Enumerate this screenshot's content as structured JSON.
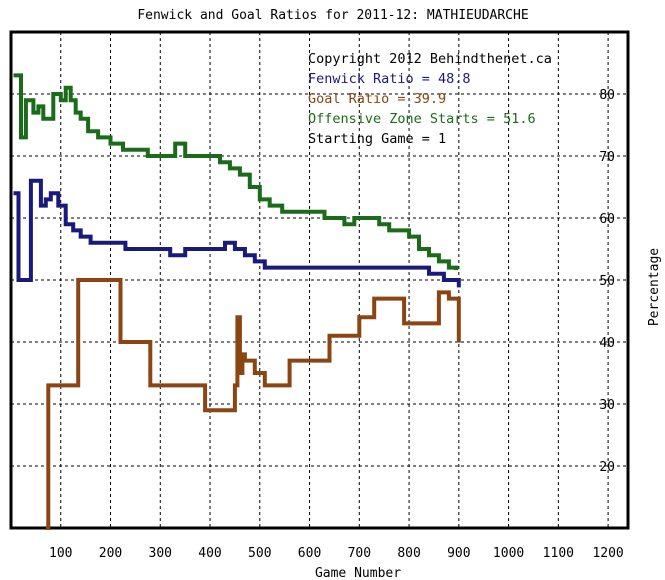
{
  "chart_data": {
    "type": "line",
    "title": "Fenwick and Goal Ratios for 2011-12: MATHIEUDARCHE",
    "xlabel": "Game Number",
    "ylabel": "Percentage",
    "xlim": [
      0,
      1240
    ],
    "ylim": [
      10,
      90
    ],
    "xticks": [
      "100",
      "200",
      "300",
      "400",
      "500",
      "600",
      "700",
      "800",
      "900",
      "1000",
      "1100",
      "1200"
    ],
    "yticks": [
      "20",
      "30",
      "40",
      "50",
      "60",
      "70",
      "80"
    ],
    "grid": true,
    "legend_position": "top-right",
    "legend": [
      {
        "text": "Copyright 2012 Behindthenet.ca",
        "color": "#000000"
      },
      {
        "text": "Fenwick Ratio = 48.8",
        "color": "#1a1a7a"
      },
      {
        "text": "Goal Ratio = 39.9",
        "color": "#8b4513"
      },
      {
        "text": "Offensive Zone Starts = 51.6",
        "color": "#1a6b1a"
      },
      {
        "text": "Starting Game = 1",
        "color": "#000000"
      }
    ],
    "series": [
      {
        "color": "#1a6b1a",
        "x": [
          5,
          20,
          30,
          45,
          55,
          65,
          85,
          100,
          110,
          120,
          130,
          140,
          155,
          175,
          200,
          225,
          250,
          275,
          300,
          315,
          330,
          350,
          375,
          400,
          420,
          440,
          460,
          480,
          500,
          520,
          545,
          575,
          600,
          630,
          650,
          670,
          690,
          715,
          740,
          760,
          780,
          800,
          820,
          840,
          860,
          880,
          895
        ],
        "y": [
          83,
          73,
          79,
          77,
          78,
          76,
          80,
          79,
          81,
          79,
          77,
          76,
          74,
          73,
          72,
          71,
          71,
          70,
          70,
          70,
          72,
          70,
          70,
          70,
          69,
          68,
          67,
          65,
          63,
          62,
          61,
          61,
          61,
          60,
          60,
          59,
          60,
          60,
          59,
          58,
          58,
          57,
          55,
          54,
          53,
          52,
          51.6
        ]
      },
      {
        "color": "#1a1a7a",
        "x": [
          5,
          15,
          25,
          40,
          50,
          60,
          70,
          80,
          95,
          110,
          125,
          140,
          160,
          180,
          200,
          230,
          260,
          290,
          320,
          350,
          380,
          410,
          430,
          450,
          470,
          490,
          510,
          540,
          570,
          600,
          640,
          680,
          720,
          760,
          800,
          840,
          870,
          900
        ],
        "y": [
          64,
          50,
          50,
          66,
          66,
          62,
          63,
          64,
          62,
          59,
          58,
          57,
          56,
          56,
          56,
          55,
          55,
          55,
          54,
          55,
          55,
          55,
          56,
          55,
          54,
          53,
          52,
          52,
          52,
          52,
          52,
          52,
          52,
          52,
          52,
          51,
          50,
          48.8
        ]
      },
      {
        "color": "#8b4513",
        "x": [
          70,
          75,
          95,
          115,
          135,
          160,
          200,
          220,
          250,
          280,
          310,
          340,
          370,
          390,
          410,
          430,
          450,
          455,
          460,
          465,
          470,
          480,
          490,
          500,
          510,
          530,
          560,
          600,
          640,
          670,
          700,
          730,
          760,
          790,
          820,
          840,
          860,
          880,
          900
        ],
        "y": [
          10,
          33,
          33,
          33,
          50,
          50,
          50,
          40,
          40,
          33,
          33,
          33,
          33,
          29,
          29,
          29,
          33,
          44,
          35,
          38,
          37,
          37,
          35,
          35,
          33,
          33,
          37,
          37,
          41,
          41,
          44,
          47,
          47,
          43,
          43,
          43,
          48,
          47,
          39.9
        ]
      }
    ]
  }
}
